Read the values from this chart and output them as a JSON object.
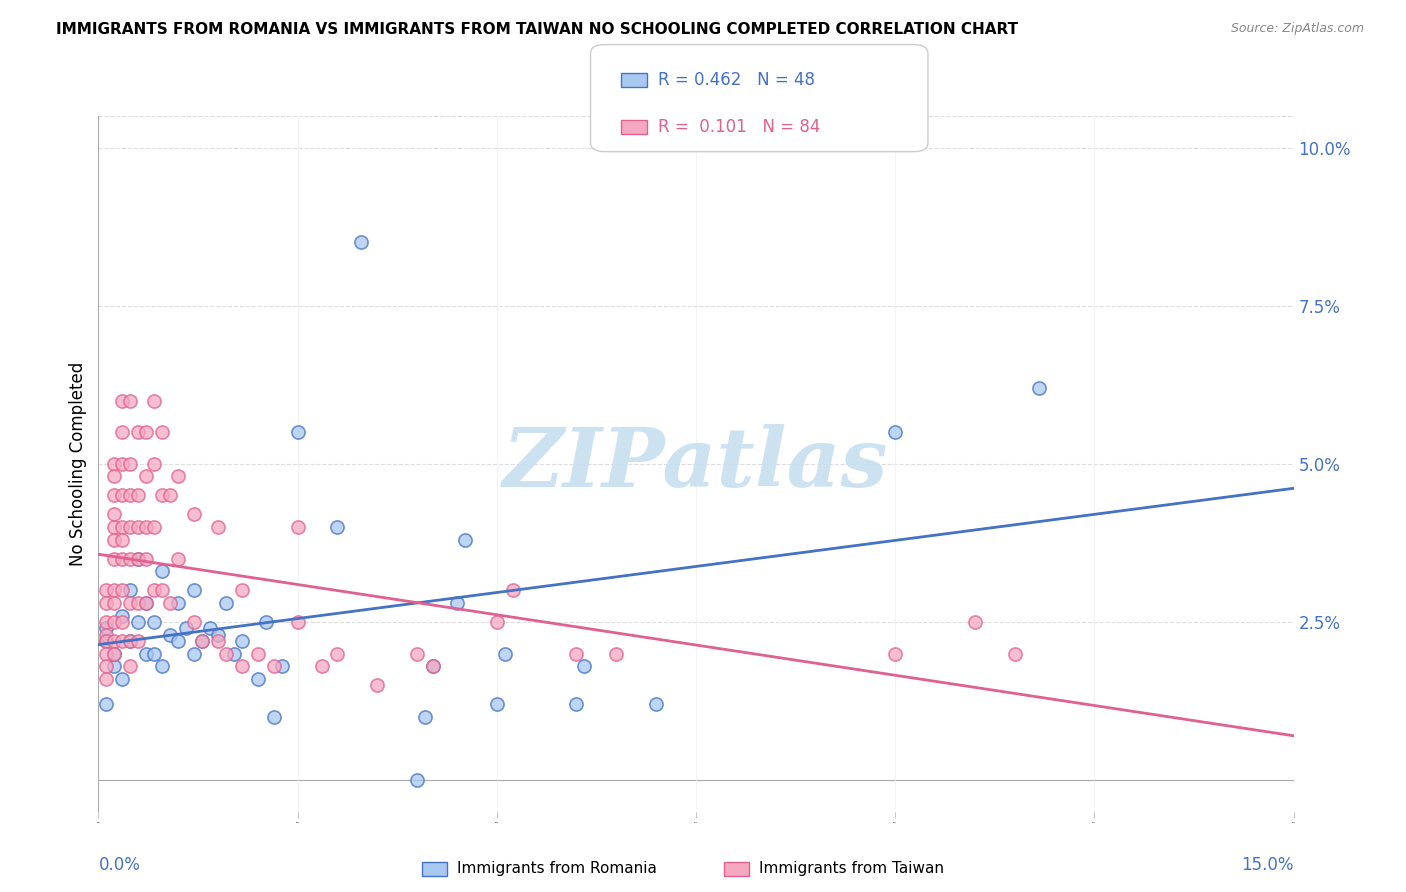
{
  "title": "IMMIGRANTS FROM ROMANIA VS IMMIGRANTS FROM TAIWAN NO SCHOOLING COMPLETED CORRELATION CHART",
  "source": "Source: ZipAtlas.com",
  "ylabel": "No Schooling Completed",
  "right_yticks_labels": [
    "10.0%",
    "7.5%",
    "5.0%",
    "2.5%"
  ],
  "right_yticks_vals": [
    0.1,
    0.075,
    0.05,
    0.025
  ],
  "legend_romania": "Immigrants from Romania",
  "legend_taiwan": "Immigrants from Taiwan",
  "R_romania": "0.462",
  "N_romania": "48",
  "R_taiwan": "0.101",
  "N_taiwan": "84",
  "color_romania_fill": "#A8C8F0",
  "color_taiwan_fill": "#F5A8C0",
  "color_romania_edge": "#4472C4",
  "color_taiwan_edge": "#E06090",
  "color_romania_line": "#4472C4",
  "color_taiwan_line": "#E06090",
  "color_text_blue": "#4472C4",
  "color_text_pink": "#E06090",
  "romania_scatter": [
    [
      0.001,
      0.022
    ],
    [
      0.001,
      0.024
    ],
    [
      0.001,
      0.012
    ],
    [
      0.002,
      0.018
    ],
    [
      0.002,
      0.02
    ],
    [
      0.003,
      0.026
    ],
    [
      0.003,
      0.016
    ],
    [
      0.004,
      0.03
    ],
    [
      0.004,
      0.022
    ],
    [
      0.005,
      0.035
    ],
    [
      0.005,
      0.025
    ],
    [
      0.006,
      0.028
    ],
    [
      0.006,
      0.02
    ],
    [
      0.007,
      0.02
    ],
    [
      0.007,
      0.025
    ],
    [
      0.008,
      0.033
    ],
    [
      0.008,
      0.018
    ],
    [
      0.009,
      0.023
    ],
    [
      0.01,
      0.022
    ],
    [
      0.01,
      0.028
    ],
    [
      0.011,
      0.024
    ],
    [
      0.012,
      0.02
    ],
    [
      0.012,
      0.03
    ],
    [
      0.013,
      0.022
    ],
    [
      0.014,
      0.024
    ],
    [
      0.015,
      0.023
    ],
    [
      0.016,
      0.028
    ],
    [
      0.017,
      0.02
    ],
    [
      0.018,
      0.022
    ],
    [
      0.02,
      0.016
    ],
    [
      0.021,
      0.025
    ],
    [
      0.022,
      0.01
    ],
    [
      0.023,
      0.018
    ],
    [
      0.025,
      0.055
    ],
    [
      0.03,
      0.04
    ],
    [
      0.033,
      0.085
    ],
    [
      0.04,
      0.0
    ],
    [
      0.041,
      0.01
    ],
    [
      0.042,
      0.018
    ],
    [
      0.045,
      0.028
    ],
    [
      0.046,
      0.038
    ],
    [
      0.05,
      0.012
    ],
    [
      0.051,
      0.02
    ],
    [
      0.06,
      0.012
    ],
    [
      0.061,
      0.018
    ],
    [
      0.07,
      0.012
    ],
    [
      0.1,
      0.055
    ],
    [
      0.118,
      0.062
    ]
  ],
  "taiwan_scatter": [
    [
      0.001,
      0.03
    ],
    [
      0.001,
      0.028
    ],
    [
      0.001,
      0.025
    ],
    [
      0.001,
      0.023
    ],
    [
      0.001,
      0.022
    ],
    [
      0.001,
      0.02
    ],
    [
      0.001,
      0.018
    ],
    [
      0.001,
      0.016
    ],
    [
      0.002,
      0.05
    ],
    [
      0.002,
      0.048
    ],
    [
      0.002,
      0.045
    ],
    [
      0.002,
      0.042
    ],
    [
      0.002,
      0.04
    ],
    [
      0.002,
      0.038
    ],
    [
      0.002,
      0.035
    ],
    [
      0.002,
      0.03
    ],
    [
      0.002,
      0.028
    ],
    [
      0.002,
      0.025
    ],
    [
      0.002,
      0.022
    ],
    [
      0.002,
      0.02
    ],
    [
      0.003,
      0.06
    ],
    [
      0.003,
      0.055
    ],
    [
      0.003,
      0.05
    ],
    [
      0.003,
      0.045
    ],
    [
      0.003,
      0.04
    ],
    [
      0.003,
      0.038
    ],
    [
      0.003,
      0.035
    ],
    [
      0.003,
      0.03
    ],
    [
      0.003,
      0.025
    ],
    [
      0.003,
      0.022
    ],
    [
      0.004,
      0.06
    ],
    [
      0.004,
      0.05
    ],
    [
      0.004,
      0.045
    ],
    [
      0.004,
      0.04
    ],
    [
      0.004,
      0.035
    ],
    [
      0.004,
      0.028
    ],
    [
      0.004,
      0.022
    ],
    [
      0.004,
      0.018
    ],
    [
      0.005,
      0.055
    ],
    [
      0.005,
      0.045
    ],
    [
      0.005,
      0.04
    ],
    [
      0.005,
      0.035
    ],
    [
      0.005,
      0.028
    ],
    [
      0.005,
      0.022
    ],
    [
      0.006,
      0.055
    ],
    [
      0.006,
      0.048
    ],
    [
      0.006,
      0.04
    ],
    [
      0.006,
      0.035
    ],
    [
      0.006,
      0.028
    ],
    [
      0.007,
      0.06
    ],
    [
      0.007,
      0.05
    ],
    [
      0.007,
      0.04
    ],
    [
      0.007,
      0.03
    ],
    [
      0.008,
      0.055
    ],
    [
      0.008,
      0.045
    ],
    [
      0.008,
      0.03
    ],
    [
      0.009,
      0.045
    ],
    [
      0.009,
      0.028
    ],
    [
      0.01,
      0.048
    ],
    [
      0.01,
      0.035
    ],
    [
      0.012,
      0.042
    ],
    [
      0.012,
      0.025
    ],
    [
      0.013,
      0.022
    ],
    [
      0.015,
      0.04
    ],
    [
      0.015,
      0.022
    ],
    [
      0.016,
      0.02
    ],
    [
      0.018,
      0.03
    ],
    [
      0.018,
      0.018
    ],
    [
      0.02,
      0.02
    ],
    [
      0.022,
      0.018
    ],
    [
      0.025,
      0.04
    ],
    [
      0.025,
      0.025
    ],
    [
      0.028,
      0.018
    ],
    [
      0.03,
      0.02
    ],
    [
      0.035,
      0.015
    ],
    [
      0.04,
      0.02
    ],
    [
      0.042,
      0.018
    ],
    [
      0.05,
      0.025
    ],
    [
      0.052,
      0.03
    ],
    [
      0.06,
      0.02
    ],
    [
      0.065,
      0.02
    ],
    [
      0.1,
      0.02
    ],
    [
      0.11,
      0.025
    ],
    [
      0.115,
      0.02
    ]
  ],
  "xmin": 0.0,
  "xmax": 0.15,
  "ymin": -0.005,
  "ymax": 0.105,
  "background_color": "#FFFFFF",
  "watermark_text": "ZIPatlas",
  "watermark_color": "#C8DFF0",
  "grid_color": "#DDDDDD",
  "marker_size": 90,
  "marker_alpha": 0.75,
  "line_width": 2.0
}
